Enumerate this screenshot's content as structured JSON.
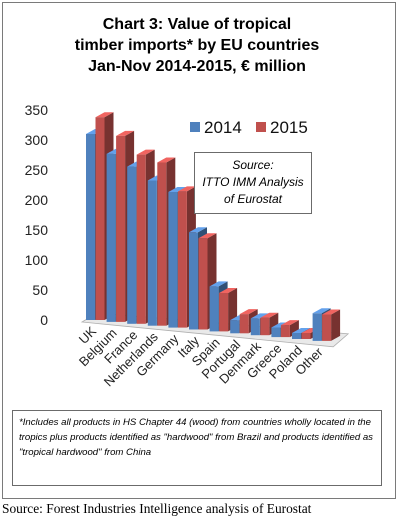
{
  "chart_data": {
    "type": "bar",
    "title_lines": [
      "Chart 3: Value of tropical",
      "timber imports* by EU countries",
      "Jan-Nov 2014-2015, € million"
    ],
    "categories": [
      "UK",
      "Belgium",
      "France",
      "Netherlands",
      "Germany",
      "Italy",
      "Spain",
      "Portugal",
      "Denmark",
      "Greece",
      "Poland",
      "Other"
    ],
    "series": [
      {
        "name": "2014",
        "color": "#4f81bd",
        "values": [
          310,
          280,
          262,
          242,
          226,
          162,
          75,
          22,
          28,
          16,
          10,
          46
        ]
      },
      {
        "name": "2015",
        "color": "#c0504d",
        "values": [
          338,
          310,
          282,
          272,
          227,
          152,
          64,
          32,
          29,
          20,
          10,
          44
        ]
      }
    ],
    "yticks": [
      0,
      50,
      100,
      150,
      200,
      250,
      300,
      350
    ],
    "ylim": [
      0,
      350
    ],
    "legend_position": "top-right",
    "source_box_lines": [
      "Source:",
      "ITTO IMM Analysis",
      "of Eurostat"
    ],
    "footnote": "*Includes all products in HS Chapter 44 (wood) from countries wholly located in the tropics plus products identified as \"hardwood\" from Brazil and products identified as \"tropical hardwood\" from China"
  },
  "caption": "Source: Forest Industries Intelligence analysis of Eurostat"
}
